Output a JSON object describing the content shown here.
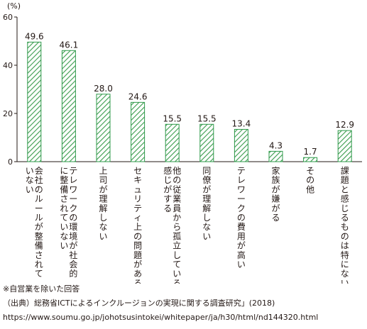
{
  "chart_data": {
    "type": "bar",
    "unit": "(%)",
    "categories": [
      "会社のルールが整備されていない",
      "テレワークの環境が社会的に整備されていない",
      "上司が理解しない",
      "セキュリティ上の問題がある",
      "他の従業員から孤立している感じがする",
      "同僚が理解しない",
      "テレワークの費用が高い",
      "家族が嫌がる",
      "その他",
      "課題と感じるものは特にない"
    ],
    "category_lines": [
      [
        "会社のルールが整備されて",
        "いない"
      ],
      [
        "テレワークの環境が社会的",
        "に整備されていない"
      ],
      [
        "上司が理解しない"
      ],
      [
        "セキュリティ上の問題がある"
      ],
      [
        "他の従業員から孤立している",
        "感じがする"
      ],
      [
        "同僚が理解しない"
      ],
      [
        "テレワークの費用が高い"
      ],
      [
        "家族が嫌がる"
      ],
      [
        "その他"
      ],
      [
        "課題と感じるものは特にない"
      ]
    ],
    "values": [
      49.6,
      46.1,
      28.0,
      24.6,
      15.5,
      15.5,
      13.4,
      4.3,
      1.7,
      12.9
    ],
    "value_labels": [
      "49.6",
      "46.1",
      "28.0",
      "24.6",
      "15.5",
      "15.5",
      "13.4",
      "4.3",
      "1.7",
      "12.9"
    ],
    "yticks": [
      0,
      20,
      40,
      60
    ],
    "ylim": [
      0,
      60
    ],
    "grid": false,
    "bar_color": "#2e9a4a",
    "bar_pattern": "diagonal-hatch"
  },
  "notes": {
    "footnote": "※自営業を除いた回答",
    "source": "（出典）総務省ICTによるインクルージョンの実現に関する調査研究」(2018)",
    "url": "https://www.soumu.go.jp/johotsusintokei/whitepaper/ja/h30/html/nd144320.html"
  }
}
